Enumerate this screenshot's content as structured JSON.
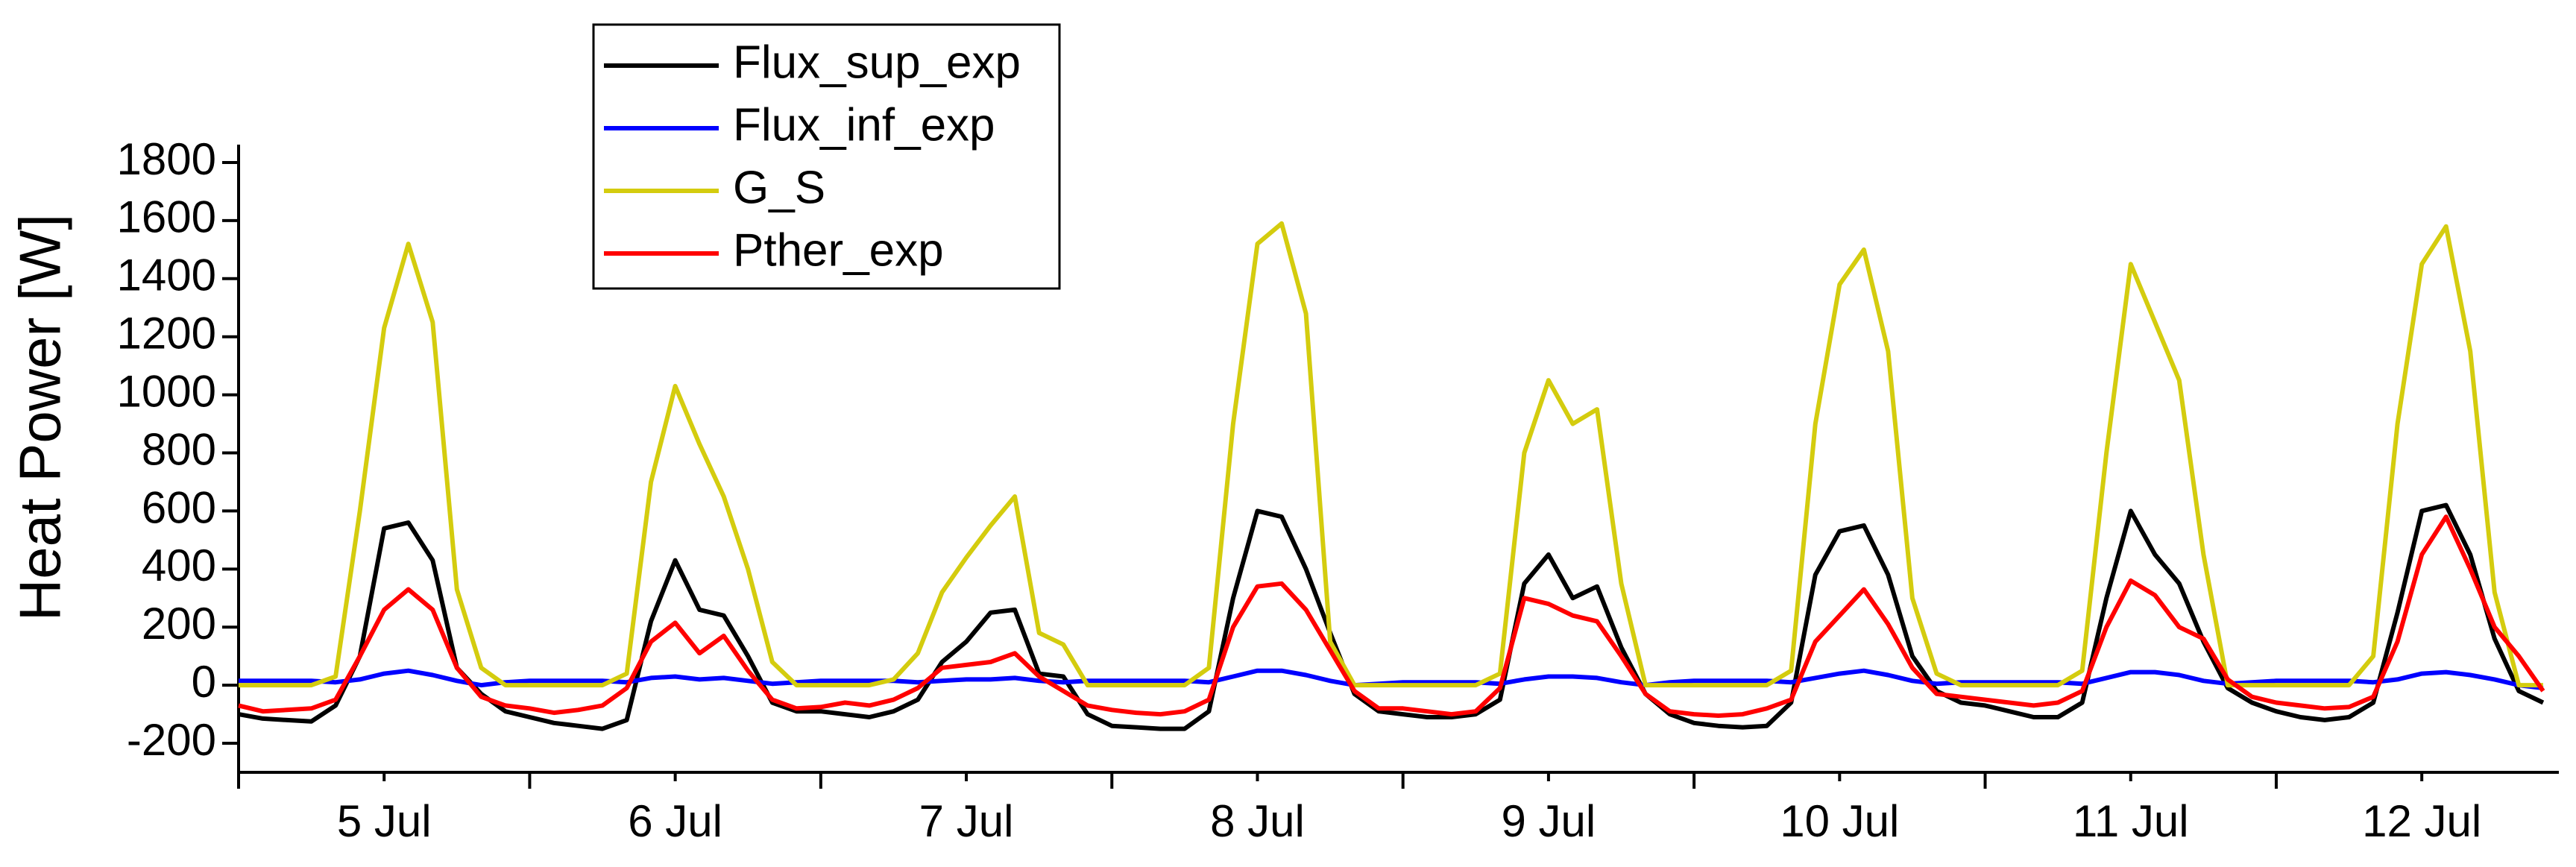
{
  "chart_data": {
    "type": "line",
    "ylabel": "Heat Power [W]",
    "x": [
      0,
      2,
      4,
      6,
      8,
      10,
      12,
      14,
      16,
      18,
      20,
      22,
      24,
      26,
      28,
      30,
      32,
      34,
      36,
      38,
      40,
      42,
      44,
      46,
      48,
      50,
      52,
      54,
      56,
      58,
      60,
      62,
      64,
      66,
      68,
      70,
      72,
      74,
      76,
      78,
      80,
      82,
      84,
      86,
      88,
      90,
      92,
      94,
      96,
      98,
      100,
      102,
      104,
      106,
      108,
      110,
      112,
      114,
      116,
      118,
      120,
      122,
      124,
      126,
      128,
      130,
      132,
      134,
      136,
      138,
      140,
      142,
      144,
      146,
      148,
      150,
      152,
      154,
      156,
      158,
      160,
      162,
      164,
      166,
      168,
      170,
      172,
      174,
      176,
      178,
      180,
      182,
      184,
      186,
      188,
      190
    ],
    "series": [
      {
        "name": "Flux_sup_exp",
        "color": "#000000",
        "values": [
          -100,
          -115,
          -120,
          -125,
          -70,
          100,
          540,
          560,
          430,
          60,
          -30,
          -90,
          -110,
          -130,
          -140,
          -150,
          -120,
          220,
          430,
          260,
          240,
          100,
          -60,
          -90,
          -90,
          -100,
          -110,
          -90,
          -50,
          80,
          150,
          250,
          260,
          40,
          30,
          -100,
          -140,
          -145,
          -150,
          -150,
          -90,
          300,
          600,
          580,
          400,
          180,
          -30,
          -90,
          -100,
          -110,
          -110,
          -100,
          -50,
          350,
          450,
          300,
          340,
          130,
          -30,
          -100,
          -130,
          -140,
          -145,
          -140,
          -60,
          380,
          530,
          550,
          380,
          100,
          -20,
          -60,
          -70,
          -90,
          -110,
          -110,
          -60,
          300,
          600,
          450,
          350,
          150,
          -10,
          -60,
          -90,
          -110,
          -120,
          -110,
          -60,
          250,
          600,
          620,
          450,
          160,
          -20,
          -60
        ]
      },
      {
        "name": "Flux_inf_exp",
        "color": "#0000ff",
        "values": [
          15,
          15,
          15,
          15,
          10,
          20,
          40,
          50,
          35,
          15,
          0,
          10,
          15,
          15,
          15,
          15,
          10,
          25,
          30,
          20,
          25,
          15,
          5,
          10,
          15,
          15,
          15,
          15,
          10,
          15,
          20,
          20,
          25,
          15,
          10,
          15,
          15,
          15,
          15,
          15,
          10,
          30,
          50,
          50,
          35,
          15,
          0,
          5,
          10,
          10,
          10,
          10,
          5,
          20,
          30,
          30,
          25,
          10,
          0,
          10,
          15,
          15,
          15,
          15,
          10,
          25,
          40,
          50,
          35,
          15,
          5,
          10,
          10,
          10,
          10,
          10,
          5,
          25,
          45,
          45,
          35,
          15,
          5,
          10,
          15,
          15,
          15,
          15,
          10,
          20,
          40,
          45,
          35,
          20,
          0,
          -10
        ]
      },
      {
        "name": "G_S",
        "color": "#d4cc0e",
        "values": [
          0,
          0,
          0,
          0,
          30,
          600,
          1230,
          1520,
          1250,
          330,
          60,
          0,
          0,
          0,
          0,
          0,
          40,
          700,
          1030,
          830,
          650,
          400,
          80,
          0,
          0,
          0,
          0,
          20,
          110,
          320,
          440,
          550,
          650,
          180,
          140,
          0,
          0,
          0,
          0,
          0,
          60,
          900,
          1520,
          1590,
          1280,
          150,
          0,
          0,
          0,
          0,
          0,
          0,
          40,
          800,
          1050,
          900,
          950,
          350,
          0,
          0,
          0,
          0,
          0,
          0,
          50,
          900,
          1380,
          1500,
          1150,
          300,
          40,
          0,
          0,
          0,
          0,
          0,
          50,
          800,
          1450,
          1250,
          1050,
          450,
          0,
          0,
          0,
          0,
          0,
          0,
          100,
          900,
          1450,
          1580,
          1150,
          320,
          0,
          0
        ]
      },
      {
        "name": "Pther_exp",
        "color": "#ff0000",
        "values": [
          -70,
          -90,
          -85,
          -80,
          -50,
          100,
          260,
          330,
          260,
          60,
          -40,
          -70,
          -80,
          -95,
          -85,
          -70,
          -10,
          150,
          215,
          110,
          170,
          50,
          -50,
          -80,
          -75,
          -60,
          -70,
          -50,
          -10,
          60,
          70,
          80,
          110,
          30,
          -20,
          -70,
          -85,
          -95,
          -100,
          -90,
          -50,
          200,
          340,
          350,
          260,
          120,
          -20,
          -80,
          -80,
          -90,
          -100,
          -90,
          -10,
          300,
          280,
          240,
          220,
          100,
          -30,
          -90,
          -100,
          -105,
          -100,
          -80,
          -50,
          150,
          240,
          330,
          210,
          60,
          -30,
          -40,
          -50,
          -60,
          -70,
          -60,
          -20,
          200,
          360,
          310,
          200,
          160,
          20,
          -40,
          -60,
          -70,
          -80,
          -75,
          -40,
          150,
          450,
          580,
          400,
          200,
          100,
          -20
        ]
      }
    ],
    "xlim": [
      0,
      191.3
    ],
    "xticks": [
      {
        "value": 12,
        "label": "5 Jul"
      },
      {
        "value": 36,
        "label": "6 Jul"
      },
      {
        "value": 60,
        "label": "7 Jul"
      },
      {
        "value": 84,
        "label": "8 Jul"
      },
      {
        "value": 108,
        "label": "9 Jul"
      },
      {
        "value": 132,
        "label": "10 Jul"
      },
      {
        "value": 156,
        "label": "11 Jul"
      },
      {
        "value": 180,
        "label": "12 Jul"
      }
    ],
    "xtick_marks": [
      24,
      48,
      72,
      96,
      120,
      144,
      168
    ],
    "ylim": [
      -300,
      1800
    ],
    "yticks": [
      -200,
      0,
      200,
      400,
      600,
      800,
      1000,
      1200,
      1400,
      1600,
      1800
    ],
    "legend": "upper left"
  }
}
